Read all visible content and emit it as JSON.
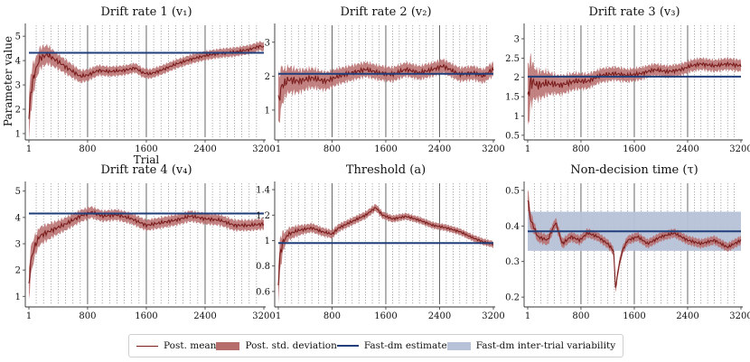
{
  "figure": {
    "ylabel": "Parameter value",
    "xlabel": "Trial",
    "colors": {
      "mean": "#7b1c1c",
      "band": "#b76c6c",
      "fast": "#1f3e7a",
      "variability": "#b7c2d8",
      "axis": "#333333"
    }
  },
  "legend": {
    "mean": "Post. mean",
    "band": "Post. std. deviation",
    "fast": "Fast-dm estimate",
    "variability": "Fast-dm inter-trial variability"
  },
  "chart_data": [
    {
      "type": "line",
      "title": "Drift rate 1 (v₁)",
      "xlim": [
        1,
        3200
      ],
      "ylim": [
        0.85,
        5.45
      ],
      "yticks": [
        1,
        2,
        3,
        4,
        5
      ],
      "xticks": [
        1,
        800,
        1600,
        2400,
        3200
      ],
      "fast_dm": 4.32,
      "mean": [
        [
          1,
          1.6
        ],
        [
          30,
          2.8
        ],
        [
          80,
          3.5
        ],
        [
          150,
          4.1
        ],
        [
          250,
          4.25
        ],
        [
          400,
          3.95
        ],
        [
          600,
          3.55
        ],
        [
          700,
          3.35
        ],
        [
          800,
          3.4
        ],
        [
          950,
          3.6
        ],
        [
          1100,
          3.55
        ],
        [
          1300,
          3.6
        ],
        [
          1450,
          3.7
        ],
        [
          1550,
          3.5
        ],
        [
          1650,
          3.45
        ],
        [
          1800,
          3.6
        ],
        [
          2000,
          3.85
        ],
        [
          2200,
          4.05
        ],
        [
          2400,
          4.2
        ],
        [
          2600,
          4.3
        ],
        [
          2800,
          4.35
        ],
        [
          3000,
          4.45
        ],
        [
          3100,
          4.55
        ],
        [
          3150,
          4.6
        ],
        [
          3200,
          4.55
        ]
      ],
      "sd": [
        [
          1,
          0.9
        ],
        [
          100,
          0.45
        ],
        [
          400,
          0.3
        ],
        [
          1000,
          0.2
        ],
        [
          2000,
          0.18
        ],
        [
          3200,
          0.18
        ]
      ]
    },
    {
      "type": "line",
      "title": "Drift rate 2 (v₂)",
      "xlim": [
        1,
        3200
      ],
      "ylim": [
        0.2,
        3.5
      ],
      "yticks": [
        1,
        2,
        3
      ],
      "xticks": [
        1,
        800,
        1600,
        2400,
        3200
      ],
      "fast_dm": 2.07,
      "mean": [
        [
          1,
          1.2
        ],
        [
          50,
          1.7
        ],
        [
          150,
          1.9
        ],
        [
          300,
          1.85
        ],
        [
          500,
          1.95
        ],
        [
          700,
          1.85
        ],
        [
          900,
          2.0
        ],
        [
          1100,
          2.1
        ],
        [
          1300,
          2.2
        ],
        [
          1500,
          2.1
        ],
        [
          1700,
          2.05
        ],
        [
          1900,
          2.2
        ],
        [
          2100,
          2.1
        ],
        [
          2300,
          2.2
        ],
        [
          2450,
          2.3
        ],
        [
          2550,
          2.2
        ],
        [
          2700,
          2.05
        ],
        [
          2900,
          2.1
        ],
        [
          3050,
          2.0
        ],
        [
          3150,
          2.15
        ],
        [
          3200,
          2.2
        ]
      ],
      "sd": [
        [
          1,
          0.75
        ],
        [
          100,
          0.4
        ],
        [
          400,
          0.3
        ],
        [
          1000,
          0.22
        ],
        [
          2000,
          0.2
        ],
        [
          3200,
          0.2
        ]
      ]
    },
    {
      "type": "line",
      "title": "Drift rate 3 (v₃)",
      "xlim": [
        1,
        3200
      ],
      "ylim": [
        0.45,
        3.35
      ],
      "yticks": [
        0.5,
        1.0,
        1.5,
        2.0,
        2.5,
        3.0
      ],
      "xticks": [
        1,
        800,
        1600,
        2400,
        3200
      ],
      "fast_dm": 2.02,
      "mean": [
        [
          1,
          1.5
        ],
        [
          50,
          1.9
        ],
        [
          150,
          1.8
        ],
        [
          300,
          1.85
        ],
        [
          500,
          1.8
        ],
        [
          700,
          1.9
        ],
        [
          900,
          1.9
        ],
        [
          1100,
          2.05
        ],
        [
          1300,
          2.1
        ],
        [
          1500,
          2.05
        ],
        [
          1700,
          2.1
        ],
        [
          1900,
          2.2
        ],
        [
          2100,
          2.15
        ],
        [
          2300,
          2.2
        ],
        [
          2450,
          2.3
        ],
        [
          2600,
          2.35
        ],
        [
          2800,
          2.3
        ],
        [
          3000,
          2.35
        ],
        [
          3200,
          2.3
        ]
      ],
      "sd": [
        [
          1,
          0.8
        ],
        [
          100,
          0.4
        ],
        [
          400,
          0.25
        ],
        [
          1000,
          0.18
        ],
        [
          2000,
          0.15
        ],
        [
          3200,
          0.15
        ]
      ]
    },
    {
      "type": "line",
      "title": "Drift rate 4 (v₄)",
      "xlim": [
        1,
        3200
      ],
      "ylim": [
        0.7,
        5.3
      ],
      "yticks": [
        1,
        2,
        3,
        4,
        5
      ],
      "xticks": [
        1,
        800,
        1600,
        2400,
        3200
      ],
      "fast_dm": 4.15,
      "mean": [
        [
          1,
          1.5
        ],
        [
          30,
          2.4
        ],
        [
          80,
          2.9
        ],
        [
          150,
          3.3
        ],
        [
          300,
          3.5
        ],
        [
          500,
          3.75
        ],
        [
          700,
          4.05
        ],
        [
          850,
          4.2
        ],
        [
          1000,
          4.05
        ],
        [
          1200,
          4.1
        ],
        [
          1400,
          3.95
        ],
        [
          1600,
          3.7
        ],
        [
          1800,
          3.8
        ],
        [
          2000,
          3.9
        ],
        [
          2200,
          4.05
        ],
        [
          2400,
          3.95
        ],
        [
          2600,
          3.9
        ],
        [
          2800,
          3.7
        ],
        [
          3000,
          3.7
        ],
        [
          3200,
          3.75
        ]
      ],
      "sd": [
        [
          1,
          0.6
        ],
        [
          100,
          0.35
        ],
        [
          400,
          0.25
        ],
        [
          1000,
          0.2
        ],
        [
          2000,
          0.2
        ],
        [
          3200,
          0.2
        ]
      ]
    },
    {
      "type": "line",
      "title": "Threshold (a)",
      "xlim": [
        1,
        3200
      ],
      "ylim": [
        0.5,
        1.45
      ],
      "yticks": [
        0.6,
        0.8,
        1.0,
        1.2,
        1.4
      ],
      "xticks": [
        1,
        800,
        1600,
        2400,
        3200
      ],
      "fast_dm": 0.98,
      "mean": [
        [
          1,
          0.65
        ],
        [
          20,
          0.85
        ],
        [
          60,
          0.98
        ],
        [
          150,
          1.05
        ],
        [
          300,
          1.08
        ],
        [
          500,
          1.1
        ],
        [
          650,
          1.07
        ],
        [
          800,
          1.05
        ],
        [
          900,
          1.1
        ],
        [
          1100,
          1.15
        ],
        [
          1300,
          1.2
        ],
        [
          1450,
          1.26
        ],
        [
          1550,
          1.2
        ],
        [
          1700,
          1.17
        ],
        [
          1900,
          1.19
        ],
        [
          2100,
          1.16
        ],
        [
          2300,
          1.12
        ],
        [
          2500,
          1.1
        ],
        [
          2700,
          1.07
        ],
        [
          2900,
          1.02
        ],
        [
          3050,
          0.99
        ],
        [
          3200,
          0.97
        ]
      ],
      "sd": [
        [
          1,
          0.15
        ],
        [
          100,
          0.05
        ],
        [
          400,
          0.035
        ],
        [
          1000,
          0.03
        ],
        [
          2000,
          0.025
        ],
        [
          3200,
          0.025
        ]
      ]
    },
    {
      "type": "line",
      "title": "Non-decision time (τ)",
      "xlim": [
        1,
        3200
      ],
      "ylim": [
        0.18,
        0.52
      ],
      "yticks": [
        0.2,
        0.3,
        0.4,
        0.5
      ],
      "xticks": [
        1,
        800,
        1600,
        2400,
        3200
      ],
      "fast_dm": 0.385,
      "fast_dm_band": [
        0.33,
        0.44
      ],
      "mean": [
        [
          1,
          0.48
        ],
        [
          40,
          0.42
        ],
        [
          150,
          0.37
        ],
        [
          300,
          0.36
        ],
        [
          420,
          0.41
        ],
        [
          520,
          0.35
        ],
        [
          650,
          0.37
        ],
        [
          780,
          0.36
        ],
        [
          900,
          0.38
        ],
        [
          1050,
          0.37
        ],
        [
          1200,
          0.35
        ],
        [
          1290,
          0.33
        ],
        [
          1320,
          0.22
        ],
        [
          1360,
          0.28
        ],
        [
          1420,
          0.33
        ],
        [
          1500,
          0.36
        ],
        [
          1650,
          0.37
        ],
        [
          1800,
          0.35
        ],
        [
          2000,
          0.37
        ],
        [
          2200,
          0.38
        ],
        [
          2400,
          0.36
        ],
        [
          2600,
          0.35
        ],
        [
          2800,
          0.36
        ],
        [
          3000,
          0.34
        ],
        [
          3200,
          0.36
        ]
      ],
      "sd": [
        [
          1,
          0.03
        ],
        [
          100,
          0.015
        ],
        [
          1000,
          0.012
        ],
        [
          3200,
          0.012
        ]
      ]
    }
  ]
}
